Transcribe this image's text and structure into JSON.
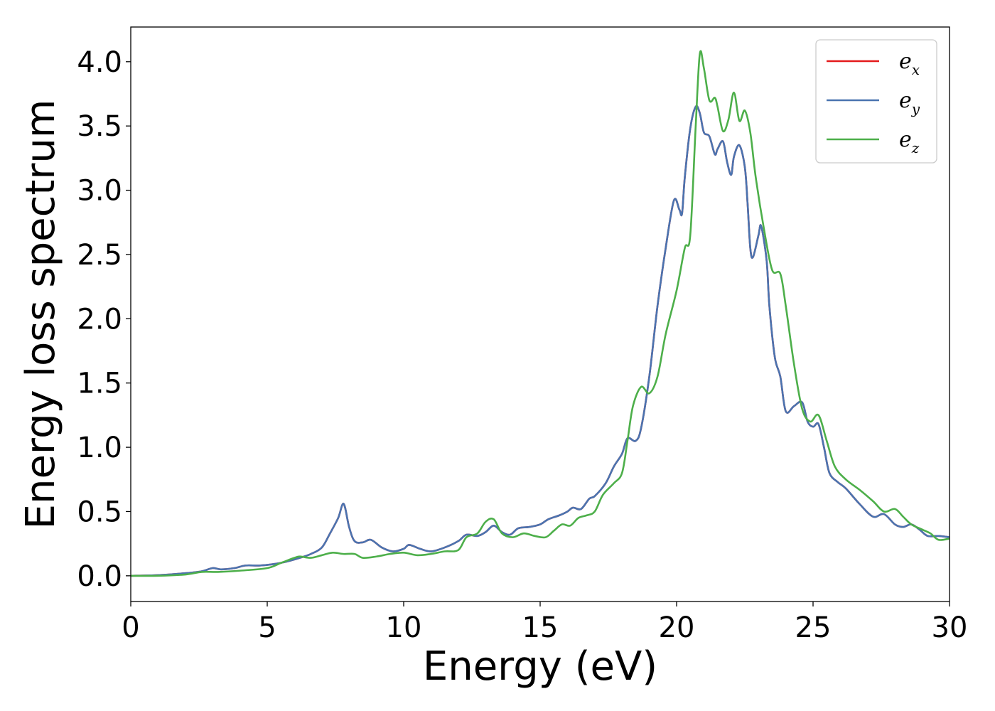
{
  "chart_data": {
    "type": "line",
    "title": "",
    "xlabel": "Energy (eV)",
    "ylabel": "Energy loss spectrum",
    "xlim": [
      0,
      30
    ],
    "ylim": [
      -0.2,
      4.27
    ],
    "xticks": [
      0,
      5,
      10,
      15,
      20,
      25,
      30
    ],
    "xtick_labels": [
      "0",
      "5",
      "10",
      "15",
      "20",
      "25",
      "30"
    ],
    "yticks": [
      0.0,
      0.5,
      1.0,
      1.5,
      2.0,
      2.5,
      3.0,
      3.5,
      4.0
    ],
    "ytick_labels": [
      "0.0",
      "0.5",
      "1.0",
      "1.5",
      "2.0",
      "2.5",
      "3.0",
      "3.5",
      "4.0"
    ],
    "grid": false,
    "legend_position": "top-right",
    "series": [
      {
        "name": "e_x",
        "legend_base": "e",
        "legend_sub": "x",
        "color": "#e41a1c",
        "x": [
          0,
          1,
          2,
          2.6,
          3,
          3.3,
          3.8,
          4.2,
          4.7,
          5.2,
          5.7,
          6.2,
          6.6,
          7,
          7.3,
          7.6,
          7.8,
          8.0,
          8.2,
          8.5,
          8.8,
          9.2,
          9.6,
          10,
          10.2,
          10.6,
          11,
          11.5,
          12,
          12.3,
          12.7,
          13.0,
          13.3,
          13.6,
          13.9,
          14.2,
          14.6,
          15,
          15.3,
          15.7,
          16.0,
          16.2,
          16.5,
          16.8,
          17.0,
          17.4,
          17.7,
          18.0,
          18.2,
          18.5,
          18.7,
          19,
          19.3,
          19.6,
          19.9,
          20.1,
          20.2,
          20.3,
          20.5,
          20.7,
          20.85,
          21,
          21.2,
          21.4,
          21.5,
          21.7,
          21.85,
          22,
          22.1,
          22.3,
          22.5,
          22.6,
          22.7,
          22.8,
          23.0,
          23.1,
          23.3,
          23.4,
          23.6,
          23.8,
          24,
          24.3,
          24.6,
          24.8,
          25.0,
          25.2,
          25.4,
          25.6,
          25.9,
          26.2,
          26.7,
          27.2,
          27.6,
          28,
          28.3,
          28.6,
          28.9,
          29.2,
          29.6,
          30
        ],
        "y": [
          0.0,
          0.005,
          0.02,
          0.035,
          0.06,
          0.05,
          0.06,
          0.08,
          0.08,
          0.09,
          0.11,
          0.14,
          0.17,
          0.22,
          0.33,
          0.45,
          0.56,
          0.38,
          0.27,
          0.26,
          0.28,
          0.22,
          0.19,
          0.21,
          0.24,
          0.21,
          0.19,
          0.22,
          0.27,
          0.32,
          0.31,
          0.34,
          0.39,
          0.34,
          0.32,
          0.37,
          0.38,
          0.4,
          0.44,
          0.47,
          0.5,
          0.53,
          0.52,
          0.6,
          0.62,
          0.72,
          0.85,
          0.95,
          1.07,
          1.05,
          1.15,
          1.55,
          2.1,
          2.55,
          2.92,
          2.85,
          2.82,
          3.1,
          3.48,
          3.65,
          3.6,
          3.45,
          3.42,
          3.28,
          3.32,
          3.38,
          3.22,
          3.12,
          3.26,
          3.35,
          3.18,
          2.9,
          2.55,
          2.48,
          2.65,
          2.72,
          2.45,
          2.1,
          1.7,
          1.55,
          1.28,
          1.32,
          1.35,
          1.2,
          1.16,
          1.18,
          1.0,
          0.8,
          0.73,
          0.68,
          0.56,
          0.46,
          0.48,
          0.4,
          0.38,
          0.4,
          0.36,
          0.31,
          0.31,
          0.3
        ]
      },
      {
        "name": "e_y",
        "legend_base": "e",
        "legend_sub": "y",
        "color": "#4a74b0",
        "x": [
          0,
          1,
          2,
          2.6,
          3,
          3.3,
          3.8,
          4.2,
          4.7,
          5.2,
          5.7,
          6.2,
          6.6,
          7,
          7.3,
          7.6,
          7.8,
          8.0,
          8.2,
          8.5,
          8.8,
          9.2,
          9.6,
          10,
          10.2,
          10.6,
          11,
          11.5,
          12,
          12.3,
          12.7,
          13.0,
          13.3,
          13.6,
          13.9,
          14.2,
          14.6,
          15,
          15.3,
          15.7,
          16.0,
          16.2,
          16.5,
          16.8,
          17.0,
          17.4,
          17.7,
          18.0,
          18.2,
          18.5,
          18.7,
          19,
          19.3,
          19.6,
          19.9,
          20.1,
          20.2,
          20.3,
          20.5,
          20.7,
          20.85,
          21,
          21.2,
          21.4,
          21.5,
          21.7,
          21.85,
          22,
          22.1,
          22.3,
          22.5,
          22.6,
          22.7,
          22.8,
          23.0,
          23.1,
          23.3,
          23.4,
          23.6,
          23.8,
          24,
          24.3,
          24.6,
          24.8,
          25.0,
          25.2,
          25.4,
          25.6,
          25.9,
          26.2,
          26.7,
          27.2,
          27.6,
          28,
          28.3,
          28.6,
          28.9,
          29.2,
          29.6,
          30
        ],
        "y": [
          0.0,
          0.005,
          0.02,
          0.035,
          0.06,
          0.05,
          0.06,
          0.08,
          0.08,
          0.09,
          0.11,
          0.14,
          0.17,
          0.22,
          0.33,
          0.45,
          0.56,
          0.38,
          0.27,
          0.26,
          0.28,
          0.22,
          0.19,
          0.21,
          0.24,
          0.21,
          0.19,
          0.22,
          0.27,
          0.32,
          0.31,
          0.34,
          0.39,
          0.34,
          0.32,
          0.37,
          0.38,
          0.4,
          0.44,
          0.47,
          0.5,
          0.53,
          0.52,
          0.6,
          0.62,
          0.72,
          0.85,
          0.95,
          1.07,
          1.05,
          1.15,
          1.55,
          2.1,
          2.55,
          2.92,
          2.85,
          2.82,
          3.1,
          3.48,
          3.65,
          3.6,
          3.45,
          3.42,
          3.28,
          3.32,
          3.38,
          3.22,
          3.12,
          3.26,
          3.35,
          3.18,
          2.9,
          2.55,
          2.48,
          2.65,
          2.72,
          2.45,
          2.1,
          1.7,
          1.55,
          1.28,
          1.32,
          1.35,
          1.2,
          1.16,
          1.18,
          1.0,
          0.8,
          0.73,
          0.68,
          0.56,
          0.46,
          0.48,
          0.4,
          0.38,
          0.4,
          0.36,
          0.31,
          0.31,
          0.3
        ]
      },
      {
        "name": "e_z",
        "legend_base": "e",
        "legend_sub": "z",
        "color": "#4daf4a",
        "x": [
          0,
          1,
          2,
          2.6,
          3.2,
          4,
          5,
          5.5,
          6,
          6.2,
          6.6,
          7,
          7.4,
          7.8,
          8.2,
          8.5,
          9,
          9.5,
          10,
          10.5,
          11,
          11.5,
          12,
          12.3,
          12.7,
          13,
          13.3,
          13.6,
          14,
          14.4,
          14.8,
          15.2,
          15.5,
          15.8,
          16.1,
          16.4,
          16.7,
          17,
          17.3,
          17.7,
          18,
          18.2,
          18.4,
          18.7,
          19,
          19.3,
          19.6,
          20,
          20.3,
          20.5,
          20.7,
          20.85,
          21,
          21.2,
          21.4,
          21.5,
          21.7,
          21.9,
          22.1,
          22.3,
          22.5,
          22.7,
          22.9,
          23.2,
          23.5,
          23.8,
          24,
          24.3,
          24.6,
          24.9,
          25.2,
          25.5,
          25.8,
          26.2,
          26.7,
          27.2,
          27.6,
          28,
          28.3,
          28.6,
          29,
          29.3,
          29.6,
          30
        ],
        "y": [
          0.0,
          0.0,
          0.01,
          0.03,
          0.03,
          0.04,
          0.06,
          0.1,
          0.14,
          0.15,
          0.14,
          0.16,
          0.18,
          0.17,
          0.17,
          0.14,
          0.15,
          0.17,
          0.18,
          0.16,
          0.17,
          0.19,
          0.2,
          0.3,
          0.33,
          0.42,
          0.44,
          0.33,
          0.3,
          0.33,
          0.31,
          0.3,
          0.35,
          0.4,
          0.39,
          0.45,
          0.47,
          0.5,
          0.63,
          0.72,
          0.8,
          1.05,
          1.32,
          1.47,
          1.42,
          1.55,
          1.88,
          2.22,
          2.55,
          2.65,
          3.5,
          4.06,
          3.95,
          3.7,
          3.72,
          3.65,
          3.46,
          3.55,
          3.76,
          3.54,
          3.62,
          3.45,
          3.1,
          2.7,
          2.38,
          2.35,
          2.1,
          1.65,
          1.3,
          1.2,
          1.25,
          1.05,
          0.85,
          0.75,
          0.67,
          0.58,
          0.5,
          0.52,
          0.46,
          0.4,
          0.36,
          0.33,
          0.28,
          0.29
        ]
      }
    ]
  }
}
